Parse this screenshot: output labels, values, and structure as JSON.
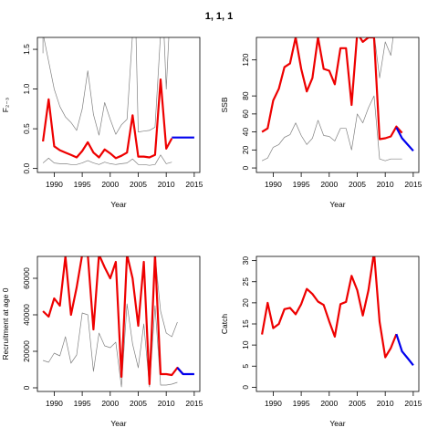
{
  "title": "1, 1, 1",
  "colors": {
    "history": "#ee0000",
    "projection": "#0000ee",
    "bounds": "#808080",
    "frame": "#000000"
  },
  "chart_data": [
    {
      "type": "line",
      "xlabel": "Year",
      "ylabel": "F₂₋₃",
      "xlim": [
        1987,
        2016
      ],
      "ylim": [
        -0.05,
        1.65
      ],
      "xticks": [
        1990,
        1995,
        2000,
        2005,
        2010,
        2015
      ],
      "yticks": [
        0.0,
        0.5,
        1.0,
        1.5
      ],
      "ytick_labels": [
        "0.0",
        "0.5",
        "1.0",
        "1.5"
      ],
      "series": [
        {
          "role": "history",
          "x": [
            1988,
            1989,
            1990,
            1991,
            1992,
            1993,
            1994,
            1995,
            1996,
            1997,
            1998,
            1999,
            2000,
            2001,
            2002,
            2003,
            2004,
            2005,
            2006,
            2007,
            2008,
            2009,
            2010,
            2011
          ],
          "y": [
            0.34,
            0.87,
            0.28,
            0.23,
            0.2,
            0.17,
            0.14,
            0.22,
            0.33,
            0.2,
            0.14,
            0.24,
            0.19,
            0.13,
            0.16,
            0.2,
            0.67,
            0.15,
            0.15,
            0.14,
            0.17,
            1.12,
            0.25,
            0.38
          ]
        },
        {
          "role": "projection",
          "x": [
            2011,
            2012,
            2013,
            2014,
            2015
          ],
          "y": [
            0.39,
            0.39,
            0.39,
            0.39,
            0.39
          ]
        },
        {
          "role": "upper",
          "x": [
            1988,
            1988,
            1990,
            1991,
            1992,
            1993,
            1994,
            1995,
            1996,
            1997,
            1998,
            1999,
            2000,
            2001,
            2002,
            2003,
            2004,
            2004.6,
            2005,
            2006,
            2007,
            2008,
            2009,
            2009.6,
            2010,
            2010.5
          ],
          "y": [
            1.45,
            1.7,
            1.0,
            0.78,
            0.65,
            0.58,
            0.48,
            0.75,
            1.23,
            0.68,
            0.42,
            0.83,
            0.62,
            0.43,
            0.55,
            0.62,
            1.7,
            1.7,
            0.46,
            0.47,
            0.48,
            0.52,
            1.7,
            1.7,
            1.0,
            1.7
          ]
        },
        {
          "role": "lower",
          "x": [
            1988,
            1989,
            1990,
            1991,
            1992,
            1993,
            1994,
            1995,
            1996,
            1997,
            1998,
            1999,
            2000,
            2001,
            2002,
            2003,
            2004,
            2005,
            2006,
            2007,
            2008,
            2009,
            2010,
            2011
          ],
          "y": [
            0.07,
            0.13,
            0.07,
            0.06,
            0.06,
            0.05,
            0.05,
            0.07,
            0.1,
            0.07,
            0.05,
            0.08,
            0.06,
            0.05,
            0.06,
            0.07,
            0.12,
            0.05,
            0.05,
            0.04,
            0.05,
            0.17,
            0.06,
            0.08
          ]
        }
      ]
    },
    {
      "type": "line",
      "xlabel": "Year",
      "ylabel": "SSB",
      "xlim": [
        1987,
        2016
      ],
      "ylim": [
        -5,
        145
      ],
      "xticks": [
        1990,
        1995,
        2000,
        2005,
        2010,
        2015
      ],
      "yticks": [
        0,
        20,
        40,
        60,
        80,
        120
      ],
      "ytick_labels": [
        "0",
        "20",
        "40",
        "60",
        "80",
        "120"
      ],
      "series": [
        {
          "role": "history",
          "x": [
            1988,
            1989,
            1990,
            1991,
            1992,
            1993,
            1994,
            1995,
            1996,
            1997,
            1998,
            1999,
            2000,
            2001,
            2002,
            2003,
            2004,
            2005,
            2006,
            2007,
            2008,
            2009,
            2010,
            2011,
            2012,
            2013
          ],
          "y": [
            40,
            44,
            75,
            88,
            112,
            116,
            145,
            110,
            85,
            100,
            145,
            110,
            108,
            93,
            133,
            133,
            70,
            150,
            140,
            145,
            145,
            32,
            33,
            35,
            46,
            39
          ]
        },
        {
          "role": "projection",
          "x": [
            2012,
            2013,
            2014,
            2015
          ],
          "y": [
            45,
            33,
            26,
            19
          ]
        },
        {
          "role": "upper",
          "x": [
            1988,
            1989,
            1990,
            1991,
            1992,
            1993,
            1994,
            1995,
            1996,
            1997,
            1998,
            1999,
            2000,
            2001,
            2002,
            2003,
            2004,
            2005,
            2006,
            2007,
            2008,
            2009,
            2010,
            2011,
            2011.5
          ],
          "y": [
            150,
            150,
            150,
            150,
            150,
            150,
            150,
            150,
            150,
            150,
            150,
            150,
            150,
            150,
            150,
            150,
            150,
            150,
            150,
            150,
            150,
            100,
            140,
            125,
            150
          ]
        },
        {
          "role": "lower",
          "x": [
            1988,
            1989,
            1990,
            1991,
            1992,
            1993,
            1994,
            1995,
            1996,
            1997,
            1998,
            1999,
            2000,
            2001,
            2002,
            2003,
            2004,
            2005,
            2006,
            2007,
            2008,
            2009,
            2010,
            2011,
            2012,
            2013
          ],
          "y": [
            8,
            11,
            23,
            26,
            34,
            37,
            50,
            36,
            26,
            33,
            53,
            36,
            35,
            30,
            44,
            44,
            20,
            60,
            50,
            67,
            80,
            10,
            8,
            10,
            10,
            10
          ]
        }
      ]
    },
    {
      "type": "line",
      "xlabel": "Year",
      "ylabel": "Recruitment at age 0",
      "xlim": [
        1987,
        2016
      ],
      "ylim": [
        -2000,
        72000
      ],
      "xticks": [
        1990,
        1995,
        2000,
        2005,
        2010,
        2015
      ],
      "yticks": [
        0,
        20000,
        40000,
        60000
      ],
      "ytick_labels": [
        "0",
        "20000",
        "40000",
        "60000"
      ],
      "series": [
        {
          "role": "history",
          "x": [
            1988,
            1989,
            1990,
            1991,
            1992,
            1993,
            1994,
            1995,
            1996,
            1997,
            1998,
            1999,
            2000,
            2001,
            2002,
            2003,
            2004,
            2005,
            2006,
            2007,
            2008,
            2009,
            2010,
            2011,
            2012,
            2013
          ],
          "y": [
            42000,
            39000,
            49000,
            45000,
            72000,
            40000,
            55000,
            73000,
            73000,
            32000,
            73000,
            66000,
            60000,
            69000,
            6000,
            73000,
            60000,
            34000,
            69000,
            2000,
            73000,
            7500,
            7500,
            7000,
            11000,
            7500
          ]
        },
        {
          "role": "projection",
          "x": [
            2012,
            2013,
            2014,
            2015
          ],
          "y": [
            11000,
            7500,
            7500,
            7500
          ]
        },
        {
          "role": "upper",
          "x": [
            1988,
            1989,
            1990,
            1991,
            1992,
            1993,
            1994,
            1995,
            1996,
            1997,
            1998,
            1999,
            2000,
            2001,
            2002,
            2003,
            2004,
            2005,
            2006,
            2007,
            2008,
            2009,
            2010,
            2011,
            2012
          ],
          "y": [
            73000,
            73000,
            73000,
            73000,
            73000,
            73000,
            73000,
            73000,
            73000,
            73000,
            73000,
            73000,
            73000,
            73000,
            73000,
            73000,
            73000,
            73000,
            73000,
            73000,
            73000,
            42000,
            30000,
            28000,
            36000
          ]
        },
        {
          "role": "lower",
          "x": [
            1988,
            1989,
            1990,
            1991,
            1992,
            1993,
            1994,
            1995,
            1996,
            1997,
            1998,
            1999,
            2000,
            2001,
            2002,
            2003,
            2004,
            2005,
            2006,
            2007,
            2008,
            2009,
            2010,
            2011,
            2012
          ],
          "y": [
            15000,
            14000,
            19000,
            17500,
            28000,
            13500,
            18000,
            41000,
            40000,
            9000,
            30000,
            23000,
            22000,
            25000,
            500,
            46000,
            24000,
            11000,
            35000,
            500,
            45000,
            1500,
            1500,
            2000,
            3000
          ]
        }
      ]
    },
    {
      "type": "line",
      "xlabel": "Year",
      "ylabel": "Catch",
      "xlim": [
        1987,
        2016
      ],
      "ylim": [
        -1,
        31
      ],
      "xticks": [
        1990,
        1995,
        2000,
        2005,
        2010,
        2015
      ],
      "yticks": [
        0,
        5,
        10,
        15,
        20,
        25,
        30
      ],
      "ytick_labels": [
        "0",
        "5",
        "10",
        "15",
        "20",
        "25",
        "30"
      ],
      "series": [
        {
          "role": "history",
          "x": [
            1988,
            1989,
            1990,
            1991,
            1992,
            1993,
            1994,
            1995,
            1996,
            1997,
            1998,
            1999,
            2000,
            2001,
            2002,
            2003,
            2004,
            2005,
            2006,
            2007,
            2008,
            2009,
            2010,
            2011,
            2012
          ],
          "y": [
            12.5,
            20.0,
            14.0,
            15.0,
            18.5,
            18.8,
            17.3,
            19.7,
            23.3,
            22.1,
            20.3,
            19.5,
            15.6,
            12.0,
            19.7,
            20.2,
            26.4,
            23.0,
            17.0,
            23.0,
            32.0,
            15.5,
            7.1,
            9.3,
            12.6
          ]
        },
        {
          "role": "projection",
          "x": [
            2012,
            2013,
            2014,
            2015
          ],
          "y": [
            12.6,
            8.5,
            6.9,
            5.2
          ]
        }
      ]
    }
  ]
}
